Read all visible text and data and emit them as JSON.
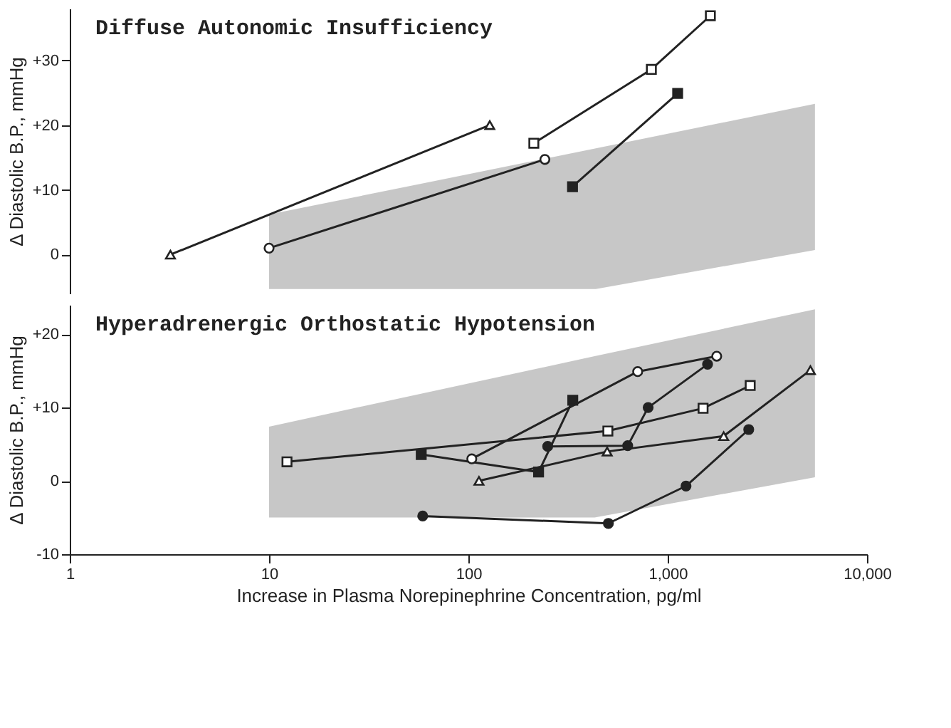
{
  "chart_data": [
    {
      "type": "line",
      "title": "Diffuse Autonomic Insufficiency",
      "ylabel": "Δ Diastolic B.P., mmHg",
      "log": "x",
      "grid": false,
      "tick_labels": "y",
      "line_style": "solid",
      "xlim": [
        1,
        10000
      ],
      "xticks": [
        1,
        10,
        100,
        1000,
        10000
      ],
      "ylim": [
        -6,
        38
      ],
      "yticks": [
        0,
        {
          "value": 10,
          "label": "+10"
        },
        {
          "value": 20,
          "label": "+20"
        },
        {
          "value": 30,
          "label": "+30"
        }
      ],
      "series": [
        {
          "type": "area",
          "color": "#bdbdbd",
          "x": [
            10,
            436,
            5480
          ],
          "values": [
            null,
            null,
            null
          ],
          "lower": [
            -5.3,
            -5.3,
            0.7
          ],
          "upper": [
            6.2,
            16.4,
            23.3
          ]
        },
        {
          "color": "#222222",
          "marker": "triangle",
          "colors": [
            "#ffffff",
            "#ffffff"
          ],
          "x": [
            3.2,
            128
          ],
          "values": [
            0,
            20
          ]
        },
        {
          "color": "#222222",
          "marker": "circle",
          "colors": [
            "#ffffff",
            "#ffffff"
          ],
          "x": [
            10,
            242
          ],
          "values": [
            1,
            14.7
          ]
        },
        {
          "color": "#222222",
          "marker": "square",
          "colors": [
            "#ffffff",
            "#ffffff",
            "#ffffff"
          ],
          "x": [
            213,
            828,
            1637
          ],
          "values": [
            17.2,
            28.6,
            36.9
          ]
        },
        {
          "color": "#222222",
          "marker": "square",
          "colors": [
            "#222222",
            "#222222"
          ],
          "x": [
            333,
            1122
          ],
          "values": [
            10.5,
            24.9
          ]
        }
      ]
    },
    {
      "type": "line",
      "title": "Hyperadrenergic Orthostatic Hypotension",
      "ylabel": "Δ Diastolic B.P., mmHg",
      "xlabel": "Increase in Plasma Norepinephrine Concentration, pg/ml",
      "log": "x",
      "grid": false,
      "line_style": "solid",
      "xlim": [
        1,
        10000
      ],
      "xticks": [
        1,
        10,
        100,
        {
          "value": 1000,
          "label": "1,000"
        },
        {
          "value": 10000,
          "label": "10,000"
        }
      ],
      "ylim": [
        -10,
        24
      ],
      "yticks": [
        -10,
        0,
        {
          "value": 10,
          "label": "+10"
        },
        {
          "value": 20,
          "label": "+20"
        }
      ],
      "series": [
        {
          "type": "area",
          "color": "#bdbdbd",
          "x": [
            10,
            430,
            5480
          ],
          "values": [
            null,
            null,
            null
          ],
          "lower": [
            -5,
            -5,
            0.5
          ],
          "upper": [
            7.4,
            17,
            23.4
          ]
        },
        {
          "color": "#222222",
          "marker": "square",
          "colors": [
            "#ffffff",
            "#ffffff",
            "#ffffff",
            "#ffffff"
          ],
          "x": [
            12.3,
            501,
            1505,
            2594
          ],
          "values": [
            2.6,
            6.8,
            9.9,
            13.0
          ]
        },
        {
          "color": "#222222",
          "marker": "square",
          "colors": [
            "#222222",
            "#222222",
            "#222222"
          ],
          "x": [
            58,
            225,
            334
          ],
          "values": [
            3.6,
            1.2,
            11.0
          ]
        },
        {
          "color": "#222222",
          "marker": "circle",
          "colors": [
            "#ffffff",
            "#ffffff",
            "#ffffff"
          ],
          "x": [
            104,
            707,
            1762
          ],
          "values": [
            3.0,
            14.9,
            17.0
          ]
        },
        {
          "color": "#222222",
          "marker": "triangle",
          "colors": [
            "#ffffff",
            "#ffffff",
            "#ffffff",
            "#ffffff"
          ],
          "x": [
            113,
            497,
            1909,
            5200
          ],
          "values": [
            0,
            4.0,
            6.1,
            15.1
          ]
        },
        {
          "color": "#222222",
          "marker": "circle",
          "colors": [
            "#222222",
            "#222222",
            "#222222",
            "#222222"
          ],
          "x": [
            250,
            630,
            798,
            1585
          ],
          "values": [
            4.7,
            4.8,
            10.0,
            15.9
          ]
        },
        {
          "color": "#222222",
          "marker": "circle",
          "colors": [
            "#222222",
            "#222222",
            "#222222",
            "#222222"
          ],
          "x": [
            59,
            504,
            1236,
            2550
          ],
          "values": [
            -4.8,
            -5.8,
            -0.7,
            7.0
          ]
        }
      ]
    }
  ]
}
